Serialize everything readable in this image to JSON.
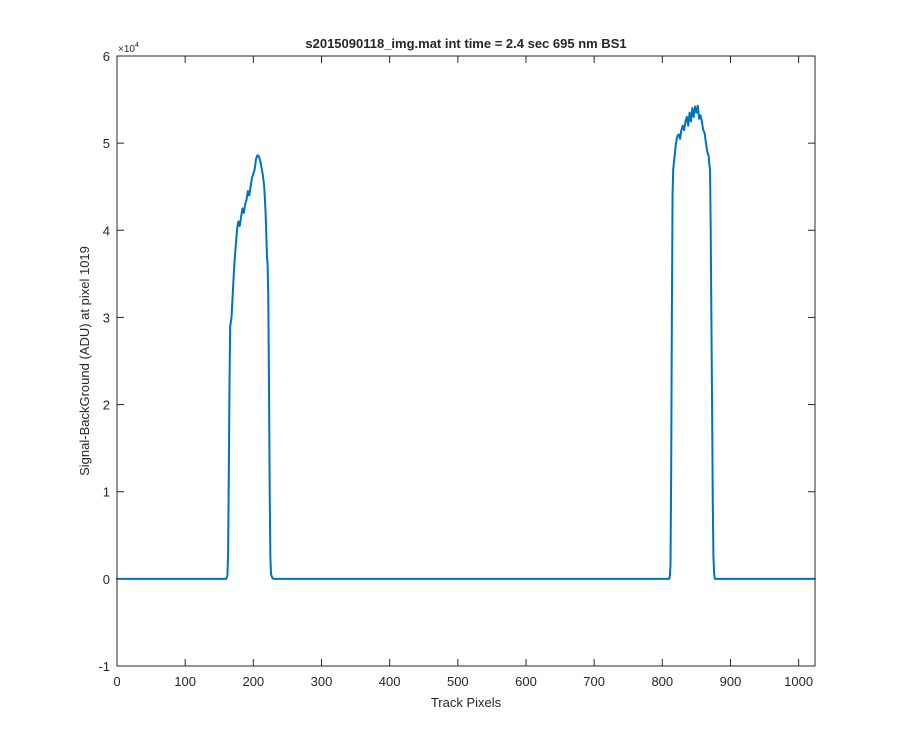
{
  "chart_data": {
    "type": "line",
    "title": "s2015090118_img.mat int time = 2.4 sec  695 nm BS1",
    "xlabel": "Track Pixels",
    "ylabel": "Signal-BackGround (ADU) at pixel 1019",
    "exponent_label": "×10",
    "exponent_power": "4",
    "xlim": [
      0,
      1024
    ],
    "ylim": [
      -10000,
      60000
    ],
    "x_ticks": [
      0,
      100,
      200,
      300,
      400,
      500,
      600,
      700,
      800,
      900,
      1000
    ],
    "x_tick_labels": [
      "0",
      "100",
      "200",
      "300",
      "400",
      "500",
      "600",
      "700",
      "800",
      "900",
      "1000"
    ],
    "y_ticks": [
      -10000,
      0,
      10000,
      20000,
      30000,
      40000,
      50000,
      60000
    ],
    "y_tick_labels": [
      "-1",
      "0",
      "1",
      "2",
      "3",
      "4",
      "5",
      "6"
    ],
    "grid": false,
    "legend": "none",
    "line_color": "#0072BD",
    "series": [
      {
        "x": [
          0,
          160,
          161,
          162,
          163,
          164,
          165,
          166,
          167,
          168,
          170,
          172,
          174,
          176,
          178,
          180,
          182,
          184,
          186,
          188,
          190,
          192,
          194,
          196,
          198,
          200,
          202,
          204,
          206,
          208,
          210,
          212,
          214,
          216,
          218,
          220,
          221,
          222,
          223,
          224,
          225,
          226,
          228,
          230,
          232,
          234,
          810,
          811,
          812,
          813,
          814,
          815,
          816,
          818,
          820,
          822,
          824,
          826,
          828,
          830,
          832,
          834,
          836,
          838,
          840,
          842,
          844,
          846,
          848,
          850,
          852,
          854,
          856,
          858,
          860,
          862,
          864,
          866,
          868,
          869,
          870,
          871,
          872,
          873,
          874,
          875,
          876,
          877,
          880,
          1024
        ],
        "y": [
          0,
          0,
          150,
          400,
          3000,
          12000,
          22000,
          29000,
          29500,
          30000,
          33000,
          36000,
          38000,
          40000,
          41000,
          40500,
          41500,
          42500,
          42000,
          43000,
          43500,
          44500,
          44000,
          45000,
          46000,
          46500,
          47000,
          48200,
          48600,
          48500,
          48000,
          47200,
          46300,
          45000,
          42000,
          37000,
          36000,
          32000,
          22000,
          10000,
          2500,
          500,
          100,
          0,
          0,
          0,
          0,
          300,
          1500,
          12000,
          30000,
          44000,
          47000,
          48500,
          50000,
          50800,
          51000,
          50500,
          51500,
          52000,
          51500,
          52500,
          53000,
          52000,
          53500,
          52500,
          54000,
          53000,
          54200,
          53500,
          54300,
          52800,
          53200,
          52500,
          51500,
          51200,
          50000,
          49000,
          48500,
          47500,
          47000,
          40000,
          30000,
          20000,
          9000,
          2500,
          600,
          0,
          0,
          0
        ]
      }
    ]
  }
}
